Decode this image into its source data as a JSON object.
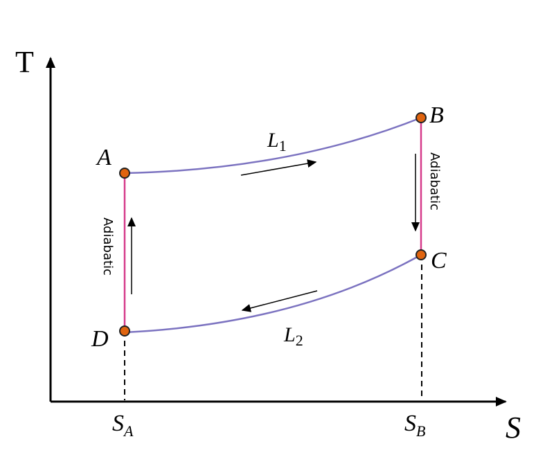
{
  "axes": {
    "y_label": "T",
    "x_label": "S"
  },
  "points": [
    {
      "label": "A"
    },
    {
      "label": "B"
    },
    {
      "label": "C"
    },
    {
      "label": "D"
    }
  ],
  "processes": [
    {
      "name": "L",
      "sub": "1"
    },
    {
      "name": "L",
      "sub": "2"
    },
    {
      "label": "Adiabatic"
    },
    {
      "label": "Adiabatic"
    }
  ],
  "entropy_labels": [
    {
      "name": "S",
      "sub": "A"
    },
    {
      "name": "S",
      "sub": "B"
    }
  ]
}
